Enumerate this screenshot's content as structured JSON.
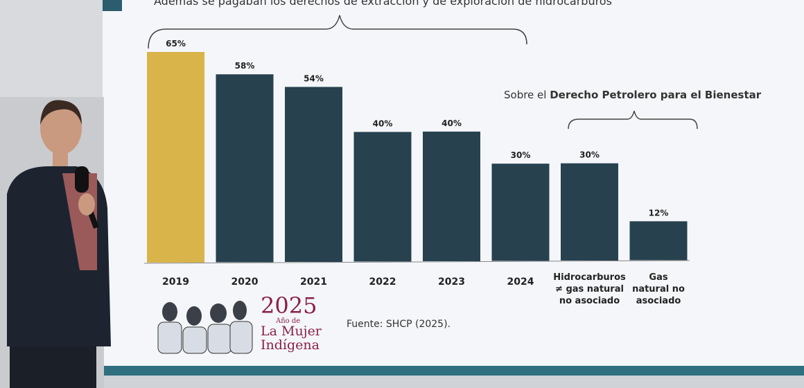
{
  "chart_data": {
    "type": "bar",
    "categories": [
      "2019",
      "2020",
      "2021",
      "2022",
      "2023",
      "2024",
      "Hidrocarburos ≠ gas natural no asociado",
      "Gas natural no asociado"
    ],
    "category_lines": [
      [
        "2019"
      ],
      [
        "2020"
      ],
      [
        "2021"
      ],
      [
        "2022"
      ],
      [
        "2023"
      ],
      [
        "2024"
      ],
      [
        "Hidrocarburos",
        "≠ gas natural",
        "no asociado"
      ],
      [
        "Gas",
        "natural no",
        "asociado"
      ]
    ],
    "values": [
      65,
      58,
      54,
      40,
      40,
      30,
      30,
      12
    ],
    "data_labels": [
      "65%",
      "58%",
      "54%",
      "40%",
      "40%",
      "30%",
      "30%",
      "12%"
    ],
    "colors": [
      "#d9b44a",
      "#27414f",
      "#27414f",
      "#27414f",
      "#27414f",
      "#27414f",
      "#27414f",
      "#27414f"
    ],
    "ylim": [
      0,
      65
    ],
    "grid": false,
    "annotations": {
      "top_brace": "Además se pagaban los derechos de extracción y de exploración de hidrocarburos",
      "right_brace_prefix": "Sobre el ",
      "right_brace_bold": "Derecho Petrolero para el Bienestar"
    }
  },
  "source": "Fuente: SHCP (2025).",
  "logo": {
    "year": "2025",
    "line1": "Año de",
    "line2": "La Mujer",
    "line3": "Indígena"
  },
  "colors": {
    "accent": "#2f6f80",
    "bar": "#27414f",
    "highlight": "#d9b44a",
    "logo": "#8a2045"
  }
}
